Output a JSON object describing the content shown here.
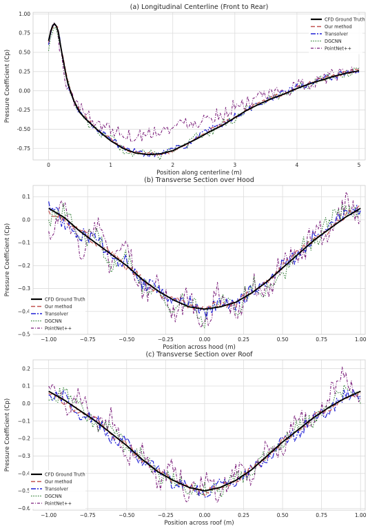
{
  "colors": {
    "cfd": "#000000",
    "ours": "#c0504d",
    "transolver": "#1f1fd6",
    "dgcnn": "#2e7d32",
    "pointnet": "#7b1f7b",
    "grid": "#dcdcdc",
    "frame": "#cccccc"
  },
  "legend_entries": [
    "CFD Ground Truth",
    "Our method",
    "Transolver",
    "DGCNN",
    "PointNet++"
  ],
  "chart_data": [
    {
      "type": "line",
      "title": "(a) Longitudinal Centerline (Front to Rear)",
      "xlabel": "Position along centerline (m)",
      "ylabel": "Pressure Coefficient (Cp)",
      "xlim": [
        -0.25,
        5.1
      ],
      "ylim": [
        -0.9,
        1.02
      ],
      "xticks": [
        0,
        1,
        2,
        3,
        4,
        5
      ],
      "xtick_labels": [
        "0",
        "1",
        "2",
        "3",
        "4",
        "5"
      ],
      "yticks": [
        -0.75,
        -0.5,
        -0.25,
        0.0,
        0.25,
        0.5,
        0.75,
        1.0
      ],
      "ytick_labels": [
        "-0.75",
        "-0.50",
        "-0.25",
        "0.00",
        "0.25",
        "0.50",
        "0.75",
        "1.00"
      ],
      "grid": true,
      "legend_position": "top-right",
      "x": [
        0,
        0.05,
        0.1,
        0.15,
        0.2,
        0.3,
        0.4,
        0.5,
        0.6,
        0.8,
        1.0,
        1.2,
        1.4,
        1.6,
        1.8,
        2.0,
        2.2,
        2.4,
        2.6,
        2.8,
        3.0,
        3.2,
        3.4,
        3.6,
        3.8,
        4.0,
        4.2,
        4.4,
        4.6,
        4.8,
        5.0
      ],
      "series": [
        {
          "name": "CFD Ground Truth",
          "values": [
            0.65,
            0.83,
            0.88,
            0.8,
            0.55,
            0.12,
            -0.12,
            -0.28,
            -0.37,
            -0.52,
            -0.65,
            -0.75,
            -0.81,
            -0.83,
            -0.82,
            -0.78,
            -0.7,
            -0.62,
            -0.53,
            -0.45,
            -0.35,
            -0.25,
            -0.17,
            -0.1,
            -0.04,
            0.03,
            0.09,
            0.14,
            0.19,
            0.23,
            0.26
          ]
        },
        {
          "name": "Our method",
          "values": [
            0.63,
            0.81,
            0.87,
            0.81,
            0.57,
            0.15,
            -0.1,
            -0.27,
            -0.36,
            -0.5,
            -0.63,
            -0.74,
            -0.8,
            -0.82,
            -0.83,
            -0.79,
            -0.71,
            -0.6,
            -0.52,
            -0.43,
            -0.34,
            -0.24,
            -0.16,
            -0.09,
            -0.03,
            0.04,
            0.1,
            0.15,
            0.19,
            0.24,
            0.27
          ]
        },
        {
          "name": "Transolver",
          "values": [
            0.6,
            0.8,
            0.86,
            0.79,
            0.58,
            0.1,
            -0.13,
            -0.3,
            -0.35,
            -0.53,
            -0.62,
            -0.76,
            -0.78,
            -0.84,
            -0.8,
            -0.76,
            -0.72,
            -0.6,
            -0.5,
            -0.44,
            -0.33,
            -0.26,
            -0.15,
            -0.11,
            -0.02,
            0.05,
            0.08,
            0.16,
            0.18,
            0.25,
            0.25
          ]
        },
        {
          "name": "DGCNN",
          "values": [
            0.52,
            0.77,
            0.9,
            0.75,
            0.5,
            0.16,
            -0.15,
            -0.25,
            -0.4,
            -0.55,
            -0.6,
            -0.78,
            -0.83,
            -0.8,
            -0.86,
            -0.75,
            -0.73,
            -0.58,
            -0.55,
            -0.42,
            -0.37,
            -0.22,
            -0.18,
            -0.08,
            -0.05,
            0.06,
            0.07,
            0.17,
            0.2,
            0.22,
            0.28
          ]
        },
        {
          "name": "PointNet++",
          "values": [
            0.6,
            0.85,
            0.92,
            0.7,
            0.45,
            0.05,
            -0.1,
            -0.22,
            -0.3,
            -0.42,
            -0.5,
            -0.55,
            -0.6,
            -0.55,
            -0.5,
            -0.5,
            -0.4,
            -0.4,
            -0.33,
            -0.3,
            -0.2,
            -0.15,
            -0.1,
            -0.05,
            0.0,
            0.05,
            0.1,
            0.15,
            0.2,
            0.25,
            0.3
          ]
        }
      ]
    },
    {
      "type": "line",
      "title": "(b) Transverse Section over Hood",
      "xlabel": "Position across hood (m)",
      "ylabel": "Pressure Coefficient (Cp)",
      "xlim": [
        -1.1,
        1.03
      ],
      "ylim": [
        -0.5,
        0.15
      ],
      "xticks": [
        -1.0,
        -0.75,
        -0.5,
        -0.25,
        0.0,
        0.25,
        0.5,
        0.75,
        1.0
      ],
      "xtick_labels": [
        "−1.00",
        "−0.75",
        "−0.50",
        "−0.25",
        "0.00",
        "0.25",
        "0.50",
        "0.75",
        "1.00"
      ],
      "yticks": [
        -0.5,
        -0.4,
        -0.3,
        -0.2,
        -0.1,
        0.0,
        0.1
      ],
      "ytick_labels": [
        "−0.5",
        "−0.4",
        "−0.3",
        "−0.2",
        "−0.1",
        "0.0",
        "0.1"
      ],
      "grid": true,
      "legend_position": "bottom-left",
      "x": [
        -1.0,
        -0.9,
        -0.8,
        -0.7,
        -0.6,
        -0.5,
        -0.4,
        -0.3,
        -0.2,
        -0.1,
        0.0,
        0.1,
        0.2,
        0.3,
        0.4,
        0.5,
        0.6,
        0.7,
        0.8,
        0.9,
        1.0
      ],
      "series": [
        {
          "name": "CFD Ground Truth",
          "values": [
            0.05,
            0.01,
            -0.05,
            -0.1,
            -0.15,
            -0.2,
            -0.26,
            -0.31,
            -0.35,
            -0.38,
            -0.39,
            -0.38,
            -0.36,
            -0.32,
            -0.27,
            -0.21,
            -0.15,
            -0.09,
            -0.04,
            0.01,
            0.05
          ]
        },
        {
          "name": "Our method",
          "values": [
            0.04,
            0.0,
            -0.04,
            -0.1,
            -0.14,
            -0.21,
            -0.25,
            -0.32,
            -0.34,
            -0.38,
            -0.38,
            -0.37,
            -0.37,
            -0.31,
            -0.27,
            -0.2,
            -0.14,
            -0.08,
            -0.05,
            0.02,
            0.06
          ]
        },
        {
          "name": "Transolver",
          "values": [
            0.08,
            -0.02,
            -0.06,
            -0.08,
            -0.17,
            -0.18,
            -0.28,
            -0.29,
            -0.37,
            -0.36,
            -0.41,
            -0.36,
            -0.38,
            -0.3,
            -0.29,
            -0.19,
            -0.16,
            -0.07,
            -0.02,
            0.03,
            0.04
          ]
        },
        {
          "name": "DGCNN",
          "values": [
            0.0,
            0.06,
            -0.1,
            -0.05,
            -0.2,
            -0.16,
            -0.3,
            -0.28,
            -0.4,
            -0.33,
            -0.44,
            -0.35,
            -0.4,
            -0.28,
            -0.31,
            -0.24,
            -0.12,
            -0.1,
            0.0,
            0.04,
            0.02
          ]
        },
        {
          "name": "PointNet++",
          "values": [
            -0.05,
            0.05,
            -0.15,
            0.0,
            -0.22,
            -0.12,
            -0.33,
            -0.25,
            -0.42,
            -0.32,
            -0.45,
            -0.3,
            -0.43,
            -0.27,
            -0.34,
            -0.17,
            -0.18,
            -0.05,
            -0.07,
            0.08,
            0.0
          ]
        }
      ]
    },
    {
      "type": "line",
      "title": "(c) Transverse Section over Roof",
      "xlabel": "Position across roof (m)",
      "ylabel": "Pressure Coefficient (Cp)",
      "xlim": [
        -1.1,
        1.03
      ],
      "ylim": [
        -0.61,
        0.25
      ],
      "xticks": [
        -1.0,
        -0.75,
        -0.5,
        -0.25,
        0.0,
        0.25,
        0.5,
        0.75,
        1.0
      ],
      "xtick_labels": [
        "−1.00",
        "−0.75",
        "−0.50",
        "−0.25",
        "0.00",
        "0.25",
        "0.50",
        "0.75",
        "1.00"
      ],
      "yticks": [
        -0.6,
        -0.5,
        -0.4,
        -0.3,
        -0.2,
        -0.1,
        0.0,
        0.1,
        0.2
      ],
      "ytick_labels": [
        "−0.6",
        "−0.5",
        "−0.4",
        "−0.3",
        "−0.2",
        "−0.1",
        "0.0",
        "0.1",
        "0.2"
      ],
      "grid": true,
      "legend_position": "bottom-left",
      "x": [
        -1.0,
        -0.9,
        -0.8,
        -0.7,
        -0.6,
        -0.5,
        -0.4,
        -0.3,
        -0.2,
        -0.1,
        0.0,
        0.1,
        0.2,
        0.3,
        0.4,
        0.5,
        0.6,
        0.7,
        0.8,
        0.9,
        1.0
      ],
      "series": [
        {
          "name": "CFD Ground Truth",
          "values": [
            0.07,
            0.02,
            -0.04,
            -0.1,
            -0.17,
            -0.24,
            -0.32,
            -0.39,
            -0.44,
            -0.48,
            -0.5,
            -0.48,
            -0.44,
            -0.38,
            -0.3,
            -0.22,
            -0.15,
            -0.08,
            -0.02,
            0.03,
            0.07
          ]
        },
        {
          "name": "Our method",
          "values": [
            0.06,
            0.01,
            -0.05,
            -0.09,
            -0.18,
            -0.23,
            -0.33,
            -0.38,
            -0.45,
            -0.47,
            -0.51,
            -0.47,
            -0.45,
            -0.37,
            -0.31,
            -0.21,
            -0.16,
            -0.07,
            -0.03,
            0.04,
            0.06
          ]
        },
        {
          "name": "Transolver",
          "values": [
            0.05,
            0.04,
            -0.07,
            -0.08,
            -0.2,
            -0.22,
            -0.35,
            -0.37,
            -0.47,
            -0.46,
            -0.53,
            -0.46,
            -0.47,
            -0.36,
            -0.33,
            -0.2,
            -0.18,
            -0.06,
            -0.04,
            0.05,
            0.05
          ]
        },
        {
          "name": "DGCNN",
          "values": [
            0.02,
            0.06,
            -0.02,
            -0.12,
            -0.14,
            -0.26,
            -0.3,
            -0.42,
            -0.42,
            -0.5,
            -0.48,
            -0.5,
            -0.42,
            -0.4,
            -0.28,
            -0.24,
            -0.12,
            -0.1,
            0.0,
            0.1,
            0.0
          ]
        },
        {
          "name": "PointNet++",
          "values": [
            0.1,
            -0.02,
            0.04,
            -0.14,
            -0.08,
            -0.3,
            -0.25,
            -0.45,
            -0.36,
            -0.53,
            -0.44,
            -0.52,
            -0.38,
            -0.42,
            -0.24,
            -0.26,
            -0.08,
            -0.12,
            0.05,
            0.18,
            0.03
          ]
        }
      ]
    }
  ]
}
